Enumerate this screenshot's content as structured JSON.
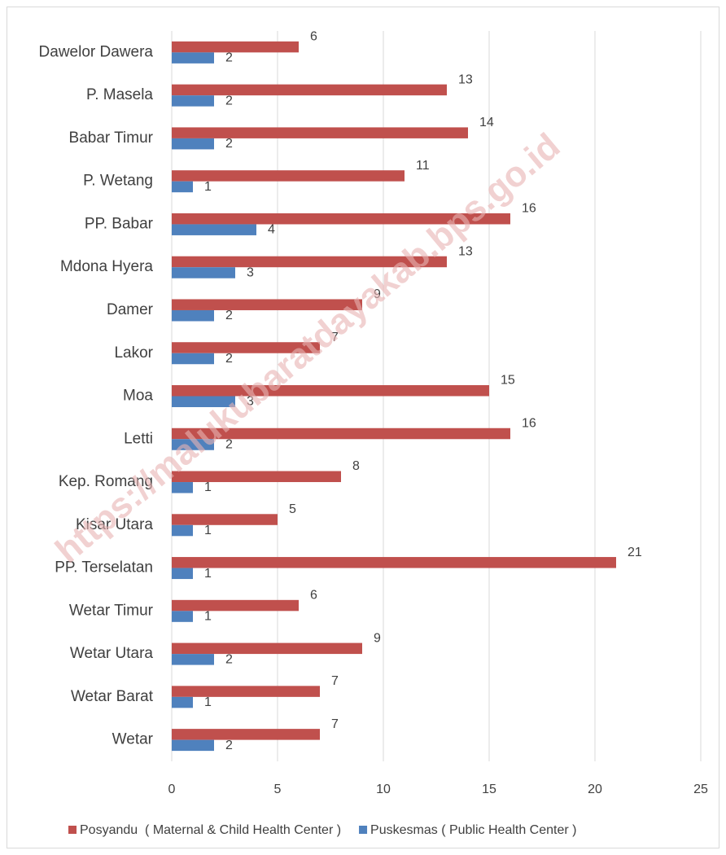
{
  "chart_data": {
    "type": "barh",
    "watermark": "https://malukubaratdayakab.bps.go.id",
    "categories": [
      "Dawelor Dawera",
      "P. Masela",
      "Babar Timur",
      "P. Wetang",
      "PP. Babar",
      "Mdona Hyera",
      "Damer",
      "Lakor",
      "Moa",
      "Letti",
      "Kep. Romang",
      "Kisar Utara",
      "PP. Terselatan",
      "Wetar Timur",
      "Wetar Utara",
      "Wetar Barat",
      "Wetar"
    ],
    "series": [
      {
        "name": "Posyandu  ( Maternal & Child Health Center )",
        "color": "#c0504d",
        "values": [
          6,
          13,
          14,
          11,
          16,
          13,
          9,
          7,
          15,
          16,
          8,
          5,
          21,
          6,
          9,
          7,
          7
        ]
      },
      {
        "name": "Puskesmas ( Public Health Center )",
        "color": "#4f81bd",
        "values": [
          2,
          2,
          2,
          1,
          4,
          3,
          2,
          2,
          3,
          2,
          1,
          1,
          1,
          1,
          2,
          1,
          2
        ]
      }
    ],
    "xlim": [
      0,
      25
    ],
    "xticks": [
      0,
      5,
      10,
      15,
      20,
      25
    ],
    "grid": true,
    "legend": "bottom"
  }
}
